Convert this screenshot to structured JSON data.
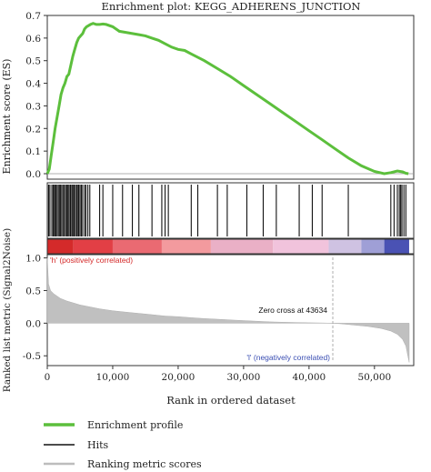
{
  "chart_data": {
    "type": "line",
    "title": "Enrichment plot: KEGG_ADHERENS_JUNCTION",
    "xlabel": "Rank in ordered dataset",
    "es_panel": {
      "ylabel": "Enrichment score (ES)",
      "ylim": [
        0,
        0.7
      ],
      "yticks": [
        "0.7",
        "0.6",
        "0.5",
        "0.4",
        "0.3",
        "0.2",
        "0.1",
        "0.0"
      ],
      "series": [
        {
          "name": "Enrichment profile",
          "color": "#5cbf3c",
          "points": [
            [
              0,
              0.0
            ],
            [
              300,
              0.02
            ],
            [
              600,
              0.08
            ],
            [
              900,
              0.14
            ],
            [
              1200,
              0.2
            ],
            [
              1500,
              0.25
            ],
            [
              1800,
              0.3
            ],
            [
              2100,
              0.35
            ],
            [
              2400,
              0.38
            ],
            [
              2700,
              0.4
            ],
            [
              3000,
              0.43
            ],
            [
              3300,
              0.44
            ],
            [
              3600,
              0.48
            ],
            [
              3900,
              0.52
            ],
            [
              4200,
              0.55
            ],
            [
              4500,
              0.58
            ],
            [
              4800,
              0.6
            ],
            [
              5100,
              0.61
            ],
            [
              5400,
              0.62
            ],
            [
              5700,
              0.64
            ],
            [
              6000,
              0.65
            ],
            [
              6300,
              0.655
            ],
            [
              6600,
              0.66
            ],
            [
              7000,
              0.665
            ],
            [
              7500,
              0.66
            ],
            [
              8000,
              0.66
            ],
            [
              8500,
              0.662
            ],
            [
              9000,
              0.66
            ],
            [
              10000,
              0.65
            ],
            [
              11000,
              0.63
            ],
            [
              12000,
              0.625
            ],
            [
              13000,
              0.62
            ],
            [
              14000,
              0.615
            ],
            [
              15000,
              0.61
            ],
            [
              16000,
              0.6
            ],
            [
              17000,
              0.59
            ],
            [
              18000,
              0.575
            ],
            [
              19000,
              0.56
            ],
            [
              20000,
              0.55
            ],
            [
              21000,
              0.545
            ],
            [
              22000,
              0.53
            ],
            [
              24000,
              0.5
            ],
            [
              26000,
              0.465
            ],
            [
              28000,
              0.43
            ],
            [
              30000,
              0.39
            ],
            [
              32000,
              0.35
            ],
            [
              34000,
              0.31
            ],
            [
              36000,
              0.27
            ],
            [
              38000,
              0.23
            ],
            [
              40000,
              0.19
            ],
            [
              42000,
              0.15
            ],
            [
              44000,
              0.11
            ],
            [
              46000,
              0.07
            ],
            [
              48000,
              0.035
            ],
            [
              50000,
              0.01
            ],
            [
              51500,
              0.0
            ],
            [
              52500,
              0.005
            ],
            [
              53500,
              0.012
            ],
            [
              54300,
              0.008
            ],
            [
              54800,
              0.002
            ],
            [
              55200,
              0.0
            ]
          ]
        }
      ]
    },
    "hits_panel": {
      "name": "Hits",
      "hits": [
        200,
        400,
        700,
        900,
        1000,
        1200,
        1300,
        1500,
        1700,
        1900,
        2000,
        2200,
        2400,
        2600,
        2800,
        3000,
        3100,
        3300,
        3500,
        3600,
        3800,
        4000,
        4100,
        4300,
        4500,
        4700,
        4800,
        5000,
        5200,
        5400,
        5700,
        5900,
        6200,
        6500,
        8000,
        8500,
        10000,
        11500,
        13000,
        14000,
        16000,
        17500,
        18000,
        18500,
        22000,
        23000,
        26000,
        27500,
        30500,
        33000,
        35000,
        38500,
        40500,
        42000,
        46000,
        52500,
        53000,
        53500,
        53800,
        54000,
        54200,
        54500,
        54800
      ]
    },
    "color_bar": {
      "segments": [
        {
          "from": 0,
          "to": 4000,
          "color": "#d42a2a"
        },
        {
          "from": 4000,
          "to": 10000,
          "color": "#e23f45"
        },
        {
          "from": 10000,
          "to": 17500,
          "color": "#ea6a72"
        },
        {
          "from": 17500,
          "to": 25000,
          "color": "#f39a9e"
        },
        {
          "from": 25000,
          "to": 34500,
          "color": "#eab0c6"
        },
        {
          "from": 34500,
          "to": 43000,
          "color": "#f1c3dc"
        },
        {
          "from": 43000,
          "to": 48000,
          "color": "#cfc2e2"
        },
        {
          "from": 48000,
          "to": 51500,
          "color": "#9f9fd6"
        },
        {
          "from": 51500,
          "to": 55300,
          "color": "#4a52b4"
        }
      ]
    },
    "metric_panel": {
      "ylabel": "Ranked list metric (Signal2Noise)",
      "ylim": [
        -0.65,
        1.05
      ],
      "yticks": [
        "1.0",
        "0.5",
        "0.0",
        "-0.5"
      ],
      "series": [
        {
          "name": "Ranking metric scores",
          "color": "#c0c0c0",
          "points": [
            [
              0,
              1.0
            ],
            [
              200,
              0.6
            ],
            [
              500,
              0.5
            ],
            [
              1000,
              0.45
            ],
            [
              2000,
              0.38
            ],
            [
              3000,
              0.34
            ],
            [
              4000,
              0.31
            ],
            [
              5000,
              0.28
            ],
            [
              6000,
              0.26
            ],
            [
              8000,
              0.22
            ],
            [
              10000,
              0.19
            ],
            [
              12000,
              0.17
            ],
            [
              14000,
              0.15
            ],
            [
              16000,
              0.13
            ],
            [
              18000,
              0.11
            ],
            [
              20000,
              0.1
            ],
            [
              22000,
              0.085
            ],
            [
              24000,
              0.07
            ],
            [
              26000,
              0.06
            ],
            [
              28000,
              0.05
            ],
            [
              30000,
              0.04
            ],
            [
              32000,
              0.03
            ],
            [
              34000,
              0.02
            ],
            [
              36000,
              0.015
            ],
            [
              38000,
              0.01
            ],
            [
              40000,
              0.006
            ],
            [
              42000,
              0.003
            ],
            [
              43634,
              0.0
            ],
            [
              45000,
              -0.01
            ],
            [
              47000,
              -0.03
            ],
            [
              49000,
              -0.05
            ],
            [
              51000,
              -0.08
            ],
            [
              52500,
              -0.12
            ],
            [
              53500,
              -0.17
            ],
            [
              54300,
              -0.25
            ],
            [
              54800,
              -0.35
            ],
            [
              55100,
              -0.5
            ],
            [
              55300,
              -0.6
            ]
          ]
        }
      ],
      "zero_cross_x": 43634,
      "zero_cross_label": "Zero cross at 43634",
      "positive_label": "'h' (positively correlated)",
      "negative_label": "'l' (negatively correlated)",
      "positive_color": "#d42a2a",
      "negative_color": "#3b4fb3"
    },
    "xlim": [
      0,
      56000
    ],
    "xticks": [
      {
        "value": 0,
        "label": "0"
      },
      {
        "value": 10000,
        "label": "10,000"
      },
      {
        "value": 20000,
        "label": "20,000"
      },
      {
        "value": 30000,
        "label": "30,000"
      },
      {
        "value": 40000,
        "label": "40,000"
      },
      {
        "value": 50000,
        "label": "50,000"
      }
    ],
    "legend": {
      "placement": "bottom-left",
      "items": [
        {
          "label": "Enrichment profile",
          "color": "#5cbf3c"
        },
        {
          "label": "Hits",
          "color": "#111111"
        },
        {
          "label": "Ranking metric scores",
          "color": "#bdbdbd"
        }
      ]
    }
  }
}
